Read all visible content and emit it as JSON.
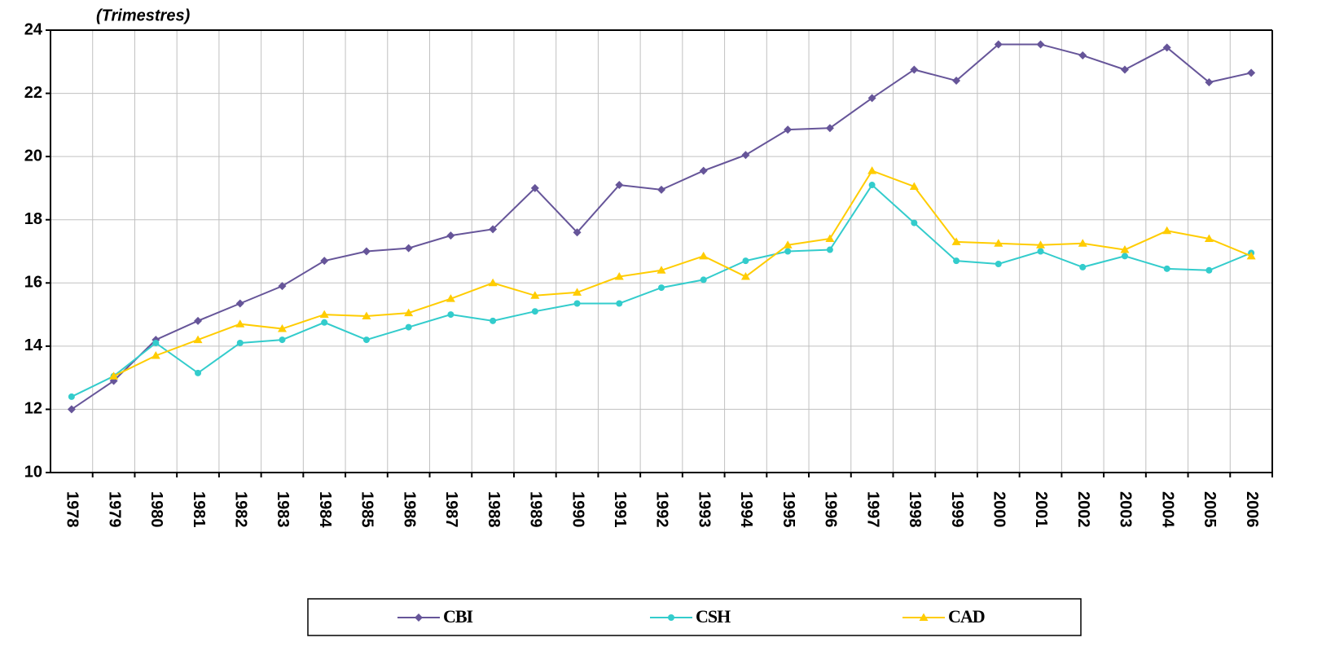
{
  "chart_data": {
    "type": "line",
    "subtitle": "(Trimestres)",
    "categories": [
      "1978",
      "1979",
      "1980",
      "1981",
      "1982",
      "1983",
      "1984",
      "1985",
      "1986",
      "1987",
      "1988",
      "1989",
      "1990",
      "1991",
      "1992",
      "1993",
      "1994",
      "1995",
      "1996",
      "1997",
      "1998",
      "1999",
      "2000",
      "2001",
      "2002",
      "2003",
      "2004",
      "2005",
      "2006"
    ],
    "ylim": [
      10,
      24
    ],
    "yticks": [
      10,
      12,
      14,
      16,
      18,
      20,
      22,
      24
    ],
    "grid": true,
    "series": [
      {
        "name": "CBI",
        "color": "#665599",
        "marker": "diamond",
        "values": [
          12.0,
          12.9,
          14.2,
          14.8,
          15.35,
          15.9,
          16.7,
          17.0,
          17.1,
          17.5,
          17.7,
          19.0,
          17.6,
          19.1,
          18.95,
          19.55,
          20.05,
          20.85,
          20.9,
          21.85,
          22.75,
          22.4,
          23.55,
          23.55,
          23.2,
          22.75,
          23.45,
          22.35,
          22.65
        ]
      },
      {
        "name": "CSH",
        "color": "#33cccc",
        "marker": "circle",
        "values": [
          12.4,
          13.05,
          14.1,
          13.15,
          14.1,
          14.2,
          14.75,
          14.2,
          14.6,
          15.0,
          14.8,
          15.1,
          15.35,
          15.35,
          15.85,
          16.1,
          16.7,
          17.0,
          17.05,
          19.1,
          17.9,
          16.7,
          16.6,
          17.0,
          16.5,
          16.85,
          16.45,
          16.4,
          16.95
        ]
      },
      {
        "name": "CAD",
        "color": "#ffcc00",
        "marker": "triangle",
        "values": [
          null,
          13.05,
          13.7,
          14.2,
          14.7,
          14.55,
          15.0,
          14.95,
          15.05,
          15.5,
          16.0,
          15.6,
          15.7,
          16.2,
          16.4,
          16.85,
          16.2,
          17.2,
          17.4,
          19.55,
          19.05,
          17.3,
          17.25,
          17.2,
          17.25,
          17.05,
          17.65,
          17.4,
          16.85
        ]
      }
    ]
  }
}
